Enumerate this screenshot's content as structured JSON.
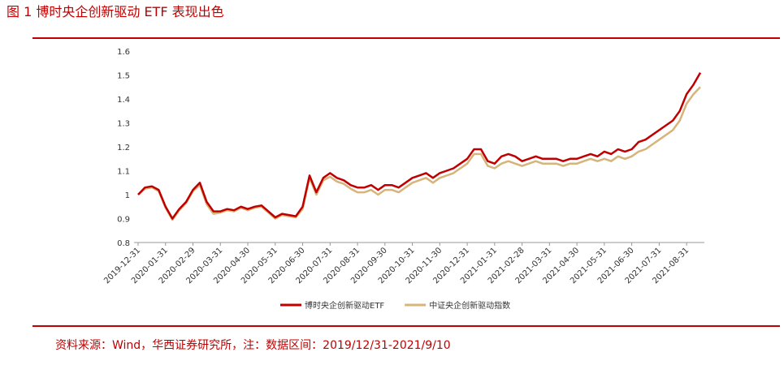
{
  "chart_data": {
    "type": "line",
    "title": "图 1 博时央企创新驱动 ETF 表现出色",
    "source": "资料来源：Wind，华西证券研究所，注：数据区间：2019/12/31-2021/9/10",
    "categories": [
      "2019-12-31",
      null,
      null,
      null,
      "2020-01-31",
      null,
      null,
      null,
      "2020-02-29",
      null,
      null,
      null,
      "2020-03-31",
      null,
      null,
      null,
      "2020-04-30",
      null,
      null,
      null,
      "2020-05-31",
      null,
      null,
      null,
      "2020-06-30",
      null,
      null,
      null,
      "2020-07-31",
      null,
      null,
      null,
      "2020-08-31",
      null,
      null,
      null,
      "2020-09-30",
      null,
      null,
      null,
      "2020-10-31",
      null,
      null,
      null,
      "2020-11-30",
      null,
      null,
      null,
      "2020-12-31",
      null,
      null,
      null,
      "2021-01-31",
      null,
      null,
      null,
      "2021-02-28",
      null,
      null,
      null,
      "2021-03-31",
      null,
      null,
      null,
      "2021-04-30",
      null,
      null,
      null,
      "2021-05-31",
      null,
      null,
      null,
      "2021-06-30",
      null,
      null,
      null,
      "2021-07-31",
      null,
      null,
      null,
      "2021-08-31",
      null,
      null
    ],
    "series": [
      {
        "name": "博时央企创新驱动ETF",
        "color": "#c00000",
        "values": [
          1.0,
          1.03,
          1.035,
          1.02,
          0.95,
          0.9,
          0.94,
          0.97,
          1.02,
          1.05,
          0.97,
          0.93,
          0.93,
          0.94,
          0.935,
          0.95,
          0.94,
          0.95,
          0.955,
          0.93,
          0.905,
          0.92,
          0.915,
          0.91,
          0.95,
          1.08,
          1.01,
          1.07,
          1.09,
          1.07,
          1.06,
          1.04,
          1.03,
          1.03,
          1.04,
          1.02,
          1.04,
          1.04,
          1.03,
          1.05,
          1.07,
          1.08,
          1.09,
          1.07,
          1.09,
          1.1,
          1.11,
          1.13,
          1.15,
          1.19,
          1.19,
          1.14,
          1.13,
          1.16,
          1.17,
          1.16,
          1.14,
          1.15,
          1.16,
          1.15,
          1.15,
          1.15,
          1.14,
          1.15,
          1.15,
          1.16,
          1.17,
          1.16,
          1.18,
          1.17,
          1.19,
          1.18,
          1.19,
          1.22,
          1.23,
          1.25,
          1.27,
          1.29,
          1.31,
          1.35,
          1.42,
          1.46,
          1.51
        ]
      },
      {
        "name": "中证央企创新驱动指数",
        "color": "#d6b47a",
        "values": [
          1.0,
          1.025,
          1.03,
          1.015,
          0.945,
          0.895,
          0.935,
          0.965,
          1.015,
          1.04,
          0.96,
          0.92,
          0.925,
          0.935,
          0.93,
          0.945,
          0.935,
          0.945,
          0.95,
          0.925,
          0.9,
          0.915,
          0.91,
          0.905,
          0.94,
          1.07,
          1.0,
          1.06,
          1.075,
          1.055,
          1.045,
          1.025,
          1.01,
          1.01,
          1.02,
          1.0,
          1.02,
          1.02,
          1.01,
          1.03,
          1.05,
          1.06,
          1.07,
          1.05,
          1.07,
          1.08,
          1.09,
          1.11,
          1.13,
          1.17,
          1.17,
          1.12,
          1.11,
          1.13,
          1.14,
          1.13,
          1.12,
          1.13,
          1.14,
          1.13,
          1.13,
          1.13,
          1.12,
          1.13,
          1.13,
          1.14,
          1.15,
          1.14,
          1.15,
          1.14,
          1.16,
          1.15,
          1.16,
          1.18,
          1.19,
          1.21,
          1.23,
          1.25,
          1.27,
          1.31,
          1.38,
          1.42,
          1.45
        ]
      }
    ],
    "ylim": [
      0.8,
      1.6
    ],
    "yticks": [
      {
        "value": 0.8,
        "label": "0.8"
      },
      {
        "value": 0.9,
        "label": "0.9"
      },
      1,
      {
        "value": 1.1,
        "label": "1.1"
      },
      {
        "value": 1.2,
        "label": "1.2"
      },
      {
        "value": 1.3,
        "label": "1.3"
      },
      {
        "value": 1.4,
        "label": "1.4"
      },
      {
        "value": 1.5,
        "label": "1.5"
      },
      {
        "value": 1.6,
        "label": "1.6"
      }
    ],
    "grid": false
  }
}
